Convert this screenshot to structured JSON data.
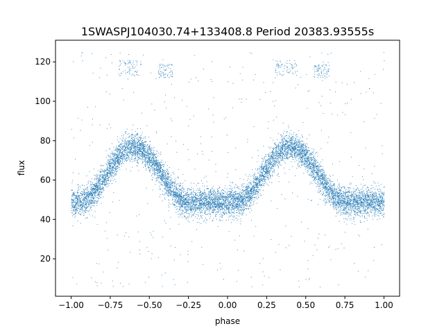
{
  "chart_data": {
    "type": "scatter",
    "title": "1SWASPJ104030.74+133408.8 Period 20383.93555s",
    "xlabel": "phase",
    "ylabel": "flux",
    "xlim": [
      -1.1,
      1.1
    ],
    "ylim": [
      1.0,
      131.0
    ],
    "xticks": [
      -1.0,
      -0.75,
      -0.5,
      -0.25,
      0.0,
      0.25,
      0.5,
      0.75,
      1.0
    ],
    "xtick_labels": [
      "−1.00",
      "−0.75",
      "−0.50",
      "−0.25",
      "0.00",
      "0.25",
      "0.50",
      "0.75",
      "1.00"
    ],
    "yticks": [
      20,
      40,
      60,
      80,
      100,
      120
    ],
    "ytick_labels": [
      "20",
      "40",
      "60",
      "80",
      "100",
      "120"
    ],
    "grid": false,
    "legend": "none",
    "series_color": "#1f77b4",
    "light_curve": {
      "phase_range": [
        -1.0,
        1.0
      ],
      "baseline_flux": 49,
      "peak_flux": 77,
      "peak_phases": [
        -0.6,
        0.4
      ],
      "trough_phases": [
        -1.0,
        -0.05,
        1.0
      ],
      "flat_minimum_halfwidth_phase": 0.15,
      "scatter_sigma": 3.5
    },
    "outlier_groups": [
      {
        "phase": [
          -0.7,
          -0.55
        ],
        "flux": [
          113,
          121
        ]
      },
      {
        "phase": [
          0.3,
          0.45
        ],
        "flux": [
          113,
          121
        ]
      },
      {
        "phase": [
          -0.45,
          -0.35
        ],
        "flux": [
          112,
          119
        ]
      },
      {
        "phase": [
          0.55,
          0.65
        ],
        "flux": [
          112,
          119
        ]
      },
      {
        "phase": [
          -1.0,
          1.0
        ],
        "flux": [
          5,
          125
        ]
      }
    ]
  }
}
